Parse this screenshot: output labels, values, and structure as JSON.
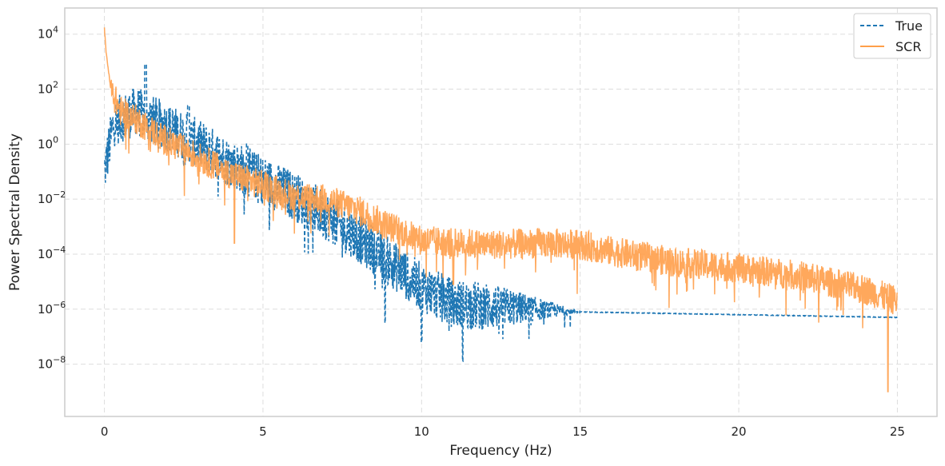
{
  "chart_data": {
    "type": "line",
    "title": "",
    "xlabel": "Frequency (Hz)",
    "ylabel": "Power Spectral Density",
    "xlim": [
      -1.25,
      26.25
    ],
    "ylim_log10": [
      -9.9,
      4.95
    ],
    "yscale": "log",
    "grid": true,
    "legend_position": "top-right",
    "x_ticks": [
      0,
      5,
      10,
      15,
      20,
      25
    ],
    "x_tick_labels": [
      "0",
      "5",
      "10",
      "15",
      "20",
      "25"
    ],
    "y_ticks_exp": [
      4,
      2,
      0,
      -2,
      -4,
      -6,
      -8
    ],
    "y_tick_base": "10",
    "y_tick_exponents": [
      "4",
      "2",
      "0",
      "−2",
      "−4",
      "−6",
      "−8"
    ],
    "series": [
      {
        "name": "True",
        "color": "#1f77b4",
        "style": "dashed",
        "trend_points": [
          {
            "f": 0.0,
            "log_psd": -1.0
          },
          {
            "f": 0.3,
            "log_psd": 0.8
          },
          {
            "f": 1.0,
            "log_psd": 1.2
          },
          {
            "f": 2.0,
            "log_psd": 0.6
          },
          {
            "f": 3.0,
            "log_psd": 0.0
          },
          {
            "f": 4.0,
            "log_psd": -0.7
          },
          {
            "f": 5.0,
            "log_psd": -1.3
          },
          {
            "f": 6.0,
            "log_psd": -1.9
          },
          {
            "f": 7.0,
            "log_psd": -2.6
          },
          {
            "f": 8.0,
            "log_psd": -3.4
          },
          {
            "f": 9.0,
            "log_psd": -4.3
          },
          {
            "f": 10.0,
            "log_psd": -5.2
          },
          {
            "f": 11.0,
            "log_psd": -5.8
          },
          {
            "f": 12.0,
            "log_psd": -5.9
          },
          {
            "f": 13.0,
            "log_psd": -5.95
          },
          {
            "f": 15.0,
            "log_psd": -6.1
          },
          {
            "f": 20.0,
            "log_psd": -6.2
          },
          {
            "f": 25.0,
            "log_psd": -6.3
          }
        ],
        "peaks": [
          {
            "f": 1.3,
            "log_psd": 2.9
          },
          {
            "f": 2.65,
            "log_psd": 1.4
          },
          {
            "f": 4.5,
            "log_psd": 0.0
          }
        ],
        "dips": [
          {
            "f": 8.85,
            "log_psd": -6.5
          },
          {
            "f": 10.0,
            "log_psd": -7.2
          },
          {
            "f": 11.3,
            "log_psd": -7.9
          }
        ]
      },
      {
        "name": "SCR",
        "color": "#ff9f4a",
        "style": "solid",
        "trend_points": [
          {
            "f": 0.0,
            "log_psd": 4.2
          },
          {
            "f": 0.05,
            "log_psd": 3.4
          },
          {
            "f": 0.2,
            "log_psd": 2.0
          },
          {
            "f": 0.5,
            "log_psd": 1.2
          },
          {
            "f": 1.0,
            "log_psd": 0.9
          },
          {
            "f": 2.0,
            "log_psd": 0.1
          },
          {
            "f": 3.0,
            "log_psd": -0.5
          },
          {
            "f": 4.0,
            "log_psd": -1.1
          },
          {
            "f": 5.0,
            "log_psd": -1.5
          },
          {
            "f": 6.0,
            "log_psd": -1.9
          },
          {
            "f": 7.0,
            "log_psd": -2.0
          },
          {
            "f": 8.0,
            "log_psd": -2.4
          },
          {
            "f": 9.0,
            "log_psd": -3.0
          },
          {
            "f": 10.0,
            "log_psd": -3.5
          },
          {
            "f": 12.0,
            "log_psd": -3.65
          },
          {
            "f": 14.0,
            "log_psd": -3.6
          },
          {
            "f": 15.0,
            "log_psd": -3.65
          },
          {
            "f": 16.0,
            "log_psd": -3.9
          },
          {
            "f": 18.0,
            "log_psd": -4.3
          },
          {
            "f": 20.0,
            "log_psd": -4.5
          },
          {
            "f": 22.0,
            "log_psd": -4.8
          },
          {
            "f": 24.0,
            "log_psd": -5.3
          },
          {
            "f": 25.0,
            "log_psd": -5.7
          }
        ],
        "peaks": [],
        "dips": [
          {
            "f": 4.1,
            "log_psd": -3.6
          },
          {
            "f": 11.0,
            "log_psd": -5.1
          },
          {
            "f": 24.7,
            "log_psd": -9.0
          }
        ]
      }
    ]
  }
}
